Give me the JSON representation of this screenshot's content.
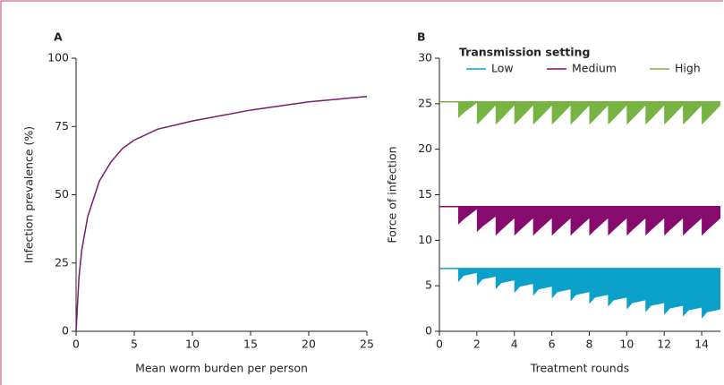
{
  "chart_data": [
    {
      "type": "line",
      "panel_label": "A",
      "x_label": "Mean worm burden per person",
      "y_label": "Infection prevalence (%)",
      "xlim": [
        0,
        25
      ],
      "ylim": [
        0,
        100
      ],
      "xticks": [
        0,
        5,
        10,
        15,
        20,
        25
      ],
      "yticks": [
        0,
        25,
        50,
        75,
        100
      ],
      "series": [
        {
          "color": "#7a1a6a",
          "x": [
            0,
            0.25,
            0.5,
            1,
            2,
            3,
            4,
            5,
            7,
            10,
            15,
            20,
            25
          ],
          "values": [
            0,
            20,
            30,
            42,
            55,
            62,
            67,
            70,
            74,
            77,
            81,
            84,
            86
          ]
        }
      ]
    },
    {
      "type": "area",
      "panel_label": "B",
      "x_label": "Treatment rounds",
      "y_label": "Force of infection",
      "legend_title": "Transmission setting",
      "xlim": [
        0,
        15
      ],
      "ylim": [
        0,
        30
      ],
      "xticks": [
        0,
        2,
        4,
        6,
        8,
        10,
        12,
        14
      ],
      "yticks": [
        0,
        5,
        10,
        15,
        20,
        25,
        30
      ],
      "x": [
        0,
        1,
        1,
        1.3,
        2,
        2,
        2.3,
        3,
        3,
        3.3,
        4,
        4,
        4.3,
        5,
        5,
        5.3,
        6,
        6,
        6.3,
        7,
        7,
        7.3,
        8,
        8,
        8.3,
        9,
        9,
        9.3,
        10,
        10,
        10.3,
        11,
        11,
        11.3,
        12,
        12,
        12.3,
        13,
        13,
        13.3,
        14,
        14,
        14.3,
        15
      ],
      "series": [
        {
          "name": "Low",
          "color": "#0aa0c8",
          "level": 6.9,
          "values": [
            6.9,
            6.9,
            5.4,
            6.1,
            6.4,
            5.0,
            5.7,
            6.0,
            4.6,
            5.3,
            5.6,
            4.2,
            4.9,
            5.2,
            3.9,
            4.6,
            4.9,
            3.6,
            4.3,
            4.6,
            3.3,
            4.0,
            4.3,
            3.0,
            3.7,
            4.0,
            2.7,
            3.4,
            3.7,
            2.4,
            3.1,
            3.4,
            2.1,
            2.8,
            3.1,
            1.8,
            2.5,
            2.8,
            1.6,
            2.3,
            2.6,
            1.4,
            2.1,
            2.4
          ]
        },
        {
          "name": "Medium",
          "color": "#870a6e",
          "level": 13.7,
          "values": [
            13.7,
            13.7,
            11.7,
            12.3,
            13.4,
            10.9,
            11.5,
            12.6,
            10.5,
            11.1,
            12.4,
            10.5,
            11.1,
            12.4,
            10.5,
            11.1,
            12.4,
            10.5,
            11.1,
            12.4,
            10.5,
            11.1,
            12.4,
            10.5,
            11.1,
            12.4,
            10.5,
            11.1,
            12.4,
            10.5,
            11.1,
            12.4,
            10.5,
            11.1,
            12.4,
            10.5,
            11.1,
            12.4,
            10.5,
            11.1,
            12.4,
            10.5,
            11.1,
            12.4
          ]
        },
        {
          "name": "High",
          "color": "#78b444",
          "level": 25.2,
          "values": [
            25.2,
            25.2,
            23.4,
            24.0,
            25.1,
            22.7,
            23.3,
            24.8,
            22.7,
            23.3,
            24.8,
            22.7,
            23.3,
            24.8,
            22.7,
            23.3,
            24.8,
            22.7,
            23.3,
            24.8,
            22.7,
            23.3,
            24.8,
            22.7,
            23.3,
            24.8,
            22.7,
            23.3,
            24.8,
            22.7,
            23.3,
            24.8,
            22.7,
            23.3,
            24.8,
            22.7,
            23.3,
            24.8,
            22.7,
            23.3,
            24.8,
            22.7,
            23.3,
            24.8
          ]
        }
      ]
    }
  ]
}
